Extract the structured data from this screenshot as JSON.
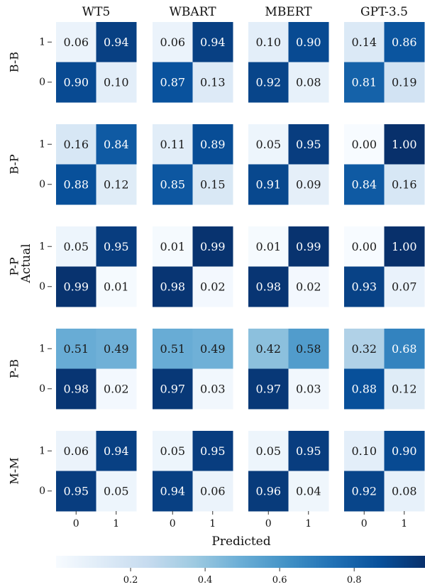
{
  "chart_data": {
    "type": "heatmap",
    "models": [
      "WT5",
      "WBART",
      "MBERT",
      "GPT-3.5"
    ],
    "tasks": [
      "B-B",
      "B-P",
      "P-P",
      "P-B",
      "M-M"
    ],
    "xlabel": "Predicted",
    "ylabel": "Actual",
    "x_ticks": [
      "0",
      "1"
    ],
    "y_ticks": [
      "1",
      "0"
    ],
    "matrices": {
      "B-B": [
        [
          [
            0.06,
            0.94
          ],
          [
            0.9,
            0.1
          ]
        ],
        [
          [
            0.06,
            0.94
          ],
          [
            0.87,
            0.13
          ]
        ],
        [
          [
            0.1,
            0.9
          ],
          [
            0.92,
            0.08
          ]
        ],
        [
          [
            0.14,
            0.86
          ],
          [
            0.81,
            0.19
          ]
        ]
      ],
      "B-P": [
        [
          [
            0.16,
            0.84
          ],
          [
            0.88,
            0.12
          ]
        ],
        [
          [
            0.11,
            0.89
          ],
          [
            0.85,
            0.15
          ]
        ],
        [
          [
            0.05,
            0.95
          ],
          [
            0.91,
            0.09
          ]
        ],
        [
          [
            0.0,
            1.0
          ],
          [
            0.84,
            0.16
          ]
        ]
      ],
      "P-P": [
        [
          [
            0.05,
            0.95
          ],
          [
            0.99,
            0.01
          ]
        ],
        [
          [
            0.01,
            0.99
          ],
          [
            0.98,
            0.02
          ]
        ],
        [
          [
            0.01,
            0.99
          ],
          [
            0.98,
            0.02
          ]
        ],
        [
          [
            0.0,
            1.0
          ],
          [
            0.93,
            0.07
          ]
        ]
      ],
      "P-B": [
        [
          [
            0.51,
            0.49
          ],
          [
            0.98,
            0.02
          ]
        ],
        [
          [
            0.51,
            0.49
          ],
          [
            0.97,
            0.03
          ]
        ],
        [
          [
            0.42,
            0.58
          ],
          [
            0.97,
            0.03
          ]
        ],
        [
          [
            0.32,
            0.68
          ],
          [
            0.88,
            0.12
          ]
        ]
      ],
      "M-M": [
        [
          [
            0.06,
            0.94
          ],
          [
            0.95,
            0.05
          ]
        ],
        [
          [
            0.05,
            0.95
          ],
          [
            0.94,
            0.06
          ]
        ],
        [
          [
            0.05,
            0.95
          ],
          [
            0.96,
            0.04
          ]
        ],
        [
          [
            0.1,
            0.9
          ],
          [
            0.92,
            0.08
          ]
        ]
      ]
    },
    "colorbar": {
      "range": [
        0.0,
        1.0
      ],
      "ticks": [
        0.2,
        0.4,
        0.6,
        0.8
      ],
      "tick_labels": [
        "0.2",
        "0.4",
        "0.6",
        "0.8"
      ],
      "colormap": "Blues",
      "color_stops": [
        "#f7fbff",
        "#deebf7",
        "#c6dbef",
        "#9ecae1",
        "#6baed6",
        "#4292c6",
        "#2171b5",
        "#08519c",
        "#08306b"
      ]
    }
  }
}
